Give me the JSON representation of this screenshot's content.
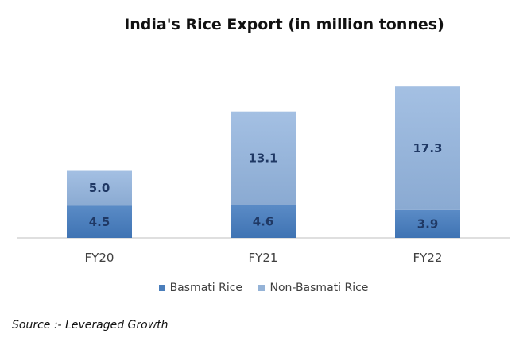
{
  "chart_data": {
    "type": "bar",
    "stacked": true,
    "title": "India's Rice Export (in million tonnes)",
    "categories": [
      "FY20",
      "FY21",
      "FY22"
    ],
    "series": [
      {
        "name": "Basmati Rice",
        "values": [
          4.5,
          4.6,
          3.9
        ],
        "color": "#4a7ebb"
      },
      {
        "name": "Non-Basmati Rice",
        "values": [
          5.0,
          13.1,
          17.3
        ],
        "color": "#95b3d7"
      }
    ],
    "value_labels": [
      "4.5",
      "4.6",
      "3.9",
      "5.0",
      "13.1",
      "17.3"
    ],
    "legend_position": "bottom",
    "grid": false
  },
  "source_text": "Source :- Leveraged Growth"
}
